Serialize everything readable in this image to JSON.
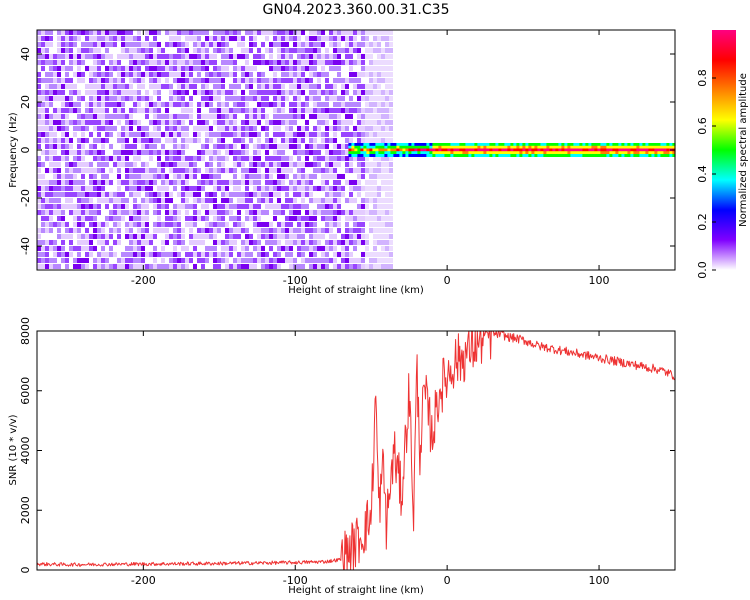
{
  "title": "GN04.2023.360.00.31.C35",
  "chart_data": [
    {
      "type": "heatmap",
      "xlabel": "Height of straight line (km)",
      "ylabel": "Frequency (Hz)",
      "xlim": [
        -270,
        150
      ],
      "ylim": [
        -50,
        50
      ],
      "xticks": [
        -200,
        -100,
        0,
        100
      ],
      "xtick_labels": [
        "-200",
        "-100",
        "0",
        "100"
      ],
      "yticks": [
        -40,
        -20,
        0,
        20,
        40
      ],
      "ytick_labels": [
        "-40",
        "-20",
        "0",
        "20",
        "40"
      ],
      "noise_region": {
        "x_from": -270,
        "x_to": -50,
        "y_from": -50,
        "y_to": 50
      },
      "signal_band": {
        "x_from": -65,
        "x_to": 150,
        "center_freq": 0,
        "half_width": 2.5
      },
      "colorbar": {
        "label": "Normalized spectral amplitude",
        "range": [
          0,
          1
        ],
        "ticks": [
          0,
          0.2,
          0.4,
          0.6,
          0.8
        ],
        "tick_labels": [
          "0.0",
          "0.2",
          "0.4",
          "0.6",
          "0.8"
        ],
        "colors": [
          "#ffffff",
          "#8000ff",
          "#0000ff",
          "#00ffff",
          "#00ff00",
          "#ffff00",
          "#ff8000",
          "#ff0000",
          "#ff0080"
        ]
      }
    },
    {
      "type": "line",
      "xlabel": "Height of straight line (km)",
      "ylabel": "SNR (10 * v/v)",
      "xlim": [
        -270,
        150
      ],
      "ylim": [
        0,
        8000
      ],
      "xticks": [
        -200,
        -100,
        0,
        100
      ],
      "xtick_labels": [
        "-200",
        "-100",
        "0",
        "100"
      ],
      "yticks": [
        0,
        2000,
        4000,
        6000,
        8000
      ],
      "ytick_labels": [
        "0",
        "2000",
        "4000",
        "6000",
        "8000"
      ],
      "color": "#ee3333",
      "series": [
        {
          "x": [
            -270,
            -250,
            -200,
            -150,
            -100,
            -80,
            -70,
            -65,
            -60,
            -55,
            -50,
            -47,
            -45,
            -42,
            -40,
            -35,
            -30,
            -25,
            -22,
            -20,
            -18,
            -15,
            -10,
            -5,
            0,
            5,
            10,
            15,
            20,
            25,
            30,
            35,
            40,
            50,
            60,
            70,
            80,
            90,
            100,
            110,
            120,
            130,
            140,
            150
          ],
          "y": [
            200,
            180,
            200,
            220,
            250,
            280,
            350,
            600,
            900,
            1300,
            1800,
            5900,
            2000,
            3500,
            1500,
            4000,
            2500,
            6000,
            1800,
            6800,
            4000,
            6000,
            4500,
            6000,
            6500,
            7000,
            7100,
            7400,
            7600,
            7800,
            7900,
            7900,
            7800,
            7700,
            7500,
            7400,
            7300,
            7200,
            7100,
            7000,
            6900,
            6800,
            6700,
            6500
          ]
        }
      ]
    }
  ]
}
